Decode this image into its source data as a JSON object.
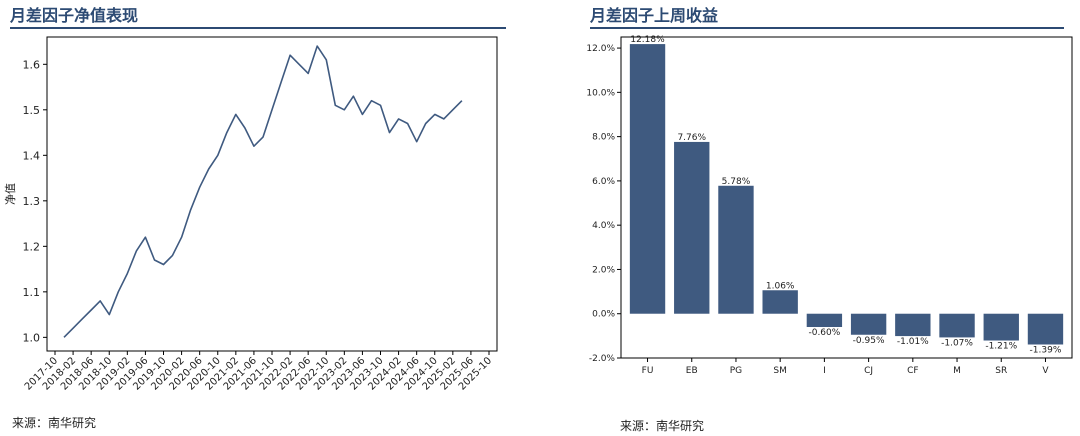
{
  "left_panel": {
    "title": "月差因子净值表现",
    "source": "来源：南华研究"
  },
  "right_panel": {
    "title": "月差因子上周收益",
    "source": "来源：南华研究"
  },
  "chart_data": [
    {
      "type": "line",
      "title": "月差因子净值表现",
      "xlabel": "",
      "ylabel": "净值",
      "ylim": [
        0.97,
        1.66
      ],
      "yticks": [
        "1.0",
        "1.1",
        "1.2",
        "1.3",
        "1.4",
        "1.5",
        "1.6"
      ],
      "xticks": [
        "2017-10",
        "2018-02",
        "2018-06",
        "2018-10",
        "2019-02",
        "2019-06",
        "2019-10",
        "2020-02",
        "2020-06",
        "2020-10",
        "2021-02",
        "2021-06",
        "2021-10",
        "2022-02",
        "2022-06",
        "2022-10",
        "2023-02",
        "2023-06",
        "2023-10",
        "2024-02",
        "2024-06",
        "2024-10",
        "2025-02",
        "2025-06",
        "2025-10"
      ],
      "grid": false,
      "color": "#3f5a80",
      "series": [
        {
          "x": [
            "2017-12",
            "2018-02",
            "2018-04",
            "2018-06",
            "2018-08",
            "2018-10",
            "2018-12",
            "2019-02",
            "2019-04",
            "2019-06",
            "2019-08",
            "2019-10",
            "2019-12",
            "2020-02",
            "2020-04",
            "2020-06",
            "2020-08",
            "2020-10",
            "2020-12",
            "2021-02",
            "2021-04",
            "2021-06",
            "2021-08",
            "2021-10",
            "2021-12",
            "2022-02",
            "2022-04",
            "2022-06",
            "2022-08",
            "2022-10",
            "2022-12",
            "2023-02",
            "2023-04",
            "2023-06",
            "2023-08",
            "2023-10",
            "2023-12",
            "2024-02",
            "2024-04",
            "2024-06",
            "2024-08",
            "2024-10",
            "2024-12",
            "2025-02",
            "2025-04"
          ],
          "values": [
            1.0,
            1.02,
            1.04,
            1.06,
            1.08,
            1.05,
            1.1,
            1.14,
            1.19,
            1.22,
            1.17,
            1.16,
            1.18,
            1.22,
            1.28,
            1.33,
            1.37,
            1.4,
            1.45,
            1.49,
            1.46,
            1.42,
            1.44,
            1.5,
            1.56,
            1.62,
            1.6,
            1.58,
            1.64,
            1.61,
            1.51,
            1.5,
            1.53,
            1.49,
            1.52,
            1.51,
            1.45,
            1.48,
            1.47,
            1.43,
            1.47,
            1.49,
            1.48,
            1.5,
            1.52
          ]
        }
      ]
    },
    {
      "type": "bar",
      "title": "月差因子上周收益",
      "xlabel": "",
      "ylabel": "",
      "ylim": [
        -2.0,
        12.5
      ],
      "yticks": [
        "-2.0%",
        "0.0%",
        "2.0%",
        "4.0%",
        "6.0%",
        "8.0%",
        "10.0%",
        "12.0%"
      ],
      "grid": false,
      "color": "#3f5a80",
      "categories": [
        "FU",
        "EB",
        "PG",
        "SM",
        "I",
        "CJ",
        "CF",
        "M",
        "SR",
        "V"
      ],
      "values": [
        12.18,
        7.76,
        5.78,
        1.06,
        -0.6,
        -0.95,
        -1.01,
        -1.07,
        -1.21,
        -1.39
      ],
      "labels": [
        "12.18%",
        "7.76%",
        "5.78%",
        "1.06%",
        "-0.60%",
        "-0.95%",
        "-1.01%",
        "-1.07%",
        "-1.21%",
        "-1.39%"
      ]
    }
  ]
}
